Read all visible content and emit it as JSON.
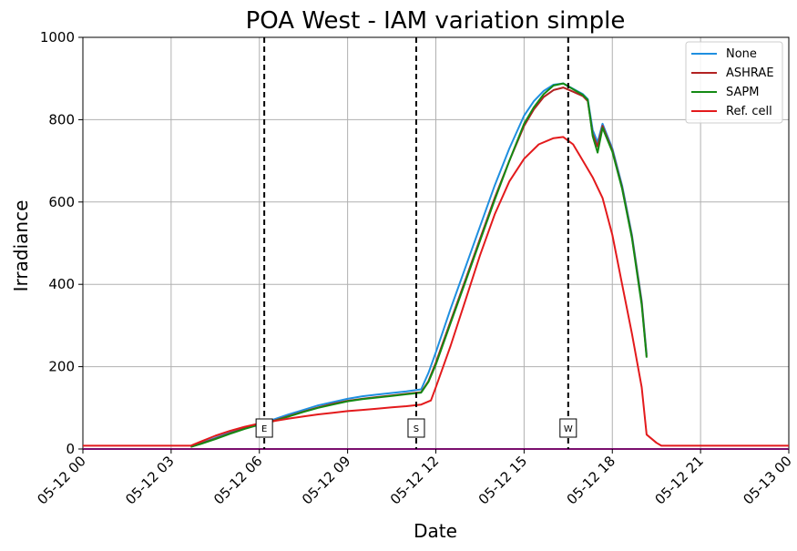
{
  "chart_data": {
    "type": "line",
    "title": "POA West - IAM variation simple",
    "xlabel": "Date",
    "ylabel": "Irradiance",
    "xlim": [
      "05-12 00:00",
      "05-13 00:00"
    ],
    "ylim": [
      0,
      1000
    ],
    "grid": true,
    "legend_position": "top-right",
    "xticks": [
      {
        "t": "05-12 00:00",
        "label": "05-12 00"
      },
      {
        "t": "05-12 03:00",
        "label": "05-12 03"
      },
      {
        "t": "05-12 06:00",
        "label": "05-12 06"
      },
      {
        "t": "05-12 09:00",
        "label": "05-12 09"
      },
      {
        "t": "05-12 12:00",
        "label": "05-12 12"
      },
      {
        "t": "05-12 15:00",
        "label": "05-12 15"
      },
      {
        "t": "05-12 18:00",
        "label": "05-12 18"
      },
      {
        "t": "05-12 21:00",
        "label": "05-12 21"
      },
      {
        "t": "05-13 00:00",
        "label": "05-13 00"
      }
    ],
    "yticks": [
      0,
      200,
      400,
      600,
      800,
      1000
    ],
    "vlines": [
      {
        "t": "05-12 06:10",
        "label": "E"
      },
      {
        "t": "05-12 11:20",
        "label": "S"
      },
      {
        "t": "05-12 16:30",
        "label": "W"
      }
    ],
    "series": [
      {
        "name": "None",
        "color": "#1f8fe0",
        "points": [
          [
            "05-12 03:40",
            5
          ],
          [
            "05-12 04:00",
            14
          ],
          [
            "05-12 04:30",
            27
          ],
          [
            "05-12 05:00",
            40
          ],
          [
            "05-12 05:30",
            52
          ],
          [
            "05-12 06:00",
            62
          ],
          [
            "05-12 06:30",
            72
          ],
          [
            "05-12 07:00",
            84
          ],
          [
            "05-12 07:30",
            95
          ],
          [
            "05-12 08:00",
            106
          ],
          [
            "05-12 08:30",
            114
          ],
          [
            "05-12 09:00",
            122
          ],
          [
            "05-12 09:30",
            128
          ],
          [
            "05-12 10:00",
            132
          ],
          [
            "05-12 10:30",
            136
          ],
          [
            "05-12 11:00",
            140
          ],
          [
            "05-12 11:30",
            145
          ],
          [
            "05-12 11:45",
            185
          ],
          [
            "05-12 12:00",
            235
          ],
          [
            "05-12 12:30",
            340
          ],
          [
            "05-12 13:00",
            440
          ],
          [
            "05-12 13:30",
            540
          ],
          [
            "05-12 14:00",
            640
          ],
          [
            "05-12 14:30",
            730
          ],
          [
            "05-12 15:00",
            810
          ],
          [
            "05-12 15:20",
            845
          ],
          [
            "05-12 15:40",
            870
          ],
          [
            "05-12 16:00",
            885
          ],
          [
            "05-12 16:20",
            888
          ],
          [
            "05-12 16:40",
            875
          ],
          [
            "05-12 17:00",
            862
          ],
          [
            "05-12 17:10",
            850
          ],
          [
            "05-12 17:20",
            775
          ],
          [
            "05-12 17:30",
            745
          ],
          [
            "05-12 17:40",
            790
          ],
          [
            "05-12 18:00",
            730
          ],
          [
            "05-12 18:20",
            640
          ],
          [
            "05-12 18:40",
            520
          ],
          [
            "05-12 19:00",
            360
          ],
          [
            "05-12 19:10",
            230
          ]
        ]
      },
      {
        "name": "ASHRAE",
        "color": "#b22222",
        "points": [
          [
            "05-12 03:40",
            5
          ],
          [
            "05-12 04:00",
            13
          ],
          [
            "05-12 04:30",
            25
          ],
          [
            "05-12 05:00",
            38
          ],
          [
            "05-12 05:30",
            50
          ],
          [
            "05-12 06:00",
            60
          ],
          [
            "05-12 06:30",
            69
          ],
          [
            "05-12 07:00",
            80
          ],
          [
            "05-12 07:30",
            91
          ],
          [
            "05-12 08:00",
            101
          ],
          [
            "05-12 08:30",
            110
          ],
          [
            "05-12 09:00",
            117
          ],
          [
            "05-12 09:30",
            122
          ],
          [
            "05-12 10:00",
            126
          ],
          [
            "05-12 10:30",
            130
          ],
          [
            "05-12 11:00",
            134
          ],
          [
            "05-12 11:30",
            138
          ],
          [
            "05-12 11:45",
            165
          ],
          [
            "05-12 12:00",
            210
          ],
          [
            "05-12 12:30",
            310
          ],
          [
            "05-12 13:00",
            410
          ],
          [
            "05-12 13:30",
            510
          ],
          [
            "05-12 14:00",
            610
          ],
          [
            "05-12 14:30",
            700
          ],
          [
            "05-12 15:00",
            785
          ],
          [
            "05-12 15:20",
            825
          ],
          [
            "05-12 15:40",
            855
          ],
          [
            "05-12 16:00",
            872
          ],
          [
            "05-12 16:20",
            878
          ],
          [
            "05-12 16:40",
            868
          ],
          [
            "05-12 17:00",
            857
          ],
          [
            "05-12 17:10",
            845
          ],
          [
            "05-12 17:20",
            765
          ],
          [
            "05-12 17:30",
            735
          ],
          [
            "05-12 17:40",
            785
          ],
          [
            "05-12 18:00",
            725
          ],
          [
            "05-12 18:20",
            635
          ],
          [
            "05-12 18:40",
            515
          ],
          [
            "05-12 19:00",
            355
          ],
          [
            "05-12 19:10",
            225
          ]
        ]
      },
      {
        "name": "SAPM",
        "color": "#138a13",
        "points": [
          [
            "05-12 03:40",
            5
          ],
          [
            "05-12 04:00",
            12
          ],
          [
            "05-12 04:30",
            24
          ],
          [
            "05-12 05:00",
            37
          ],
          [
            "05-12 05:30",
            49
          ],
          [
            "05-12 06:00",
            59
          ],
          [
            "05-12 06:30",
            68
          ],
          [
            "05-12 07:00",
            79
          ],
          [
            "05-12 07:30",
            90
          ],
          [
            "05-12 08:00",
            100
          ],
          [
            "05-12 08:30",
            108
          ],
          [
            "05-12 09:00",
            116
          ],
          [
            "05-12 09:30",
            121
          ],
          [
            "05-12 10:00",
            125
          ],
          [
            "05-12 10:30",
            129
          ],
          [
            "05-12 11:00",
            133
          ],
          [
            "05-12 11:30",
            137
          ],
          [
            "05-12 11:45",
            163
          ],
          [
            "05-12 12:00",
            205
          ],
          [
            "05-12 12:30",
            305
          ],
          [
            "05-12 13:00",
            405
          ],
          [
            "05-12 13:30",
            505
          ],
          [
            "05-12 14:00",
            605
          ],
          [
            "05-12 14:30",
            700
          ],
          [
            "05-12 15:00",
            790
          ],
          [
            "05-12 15:20",
            830
          ],
          [
            "05-12 15:40",
            862
          ],
          [
            "05-12 16:00",
            883
          ],
          [
            "05-12 16:20",
            888
          ],
          [
            "05-12 16:40",
            874
          ],
          [
            "05-12 17:00",
            860
          ],
          [
            "05-12 17:10",
            848
          ],
          [
            "05-12 17:20",
            760
          ],
          [
            "05-12 17:30",
            720
          ],
          [
            "05-12 17:40",
            780
          ],
          [
            "05-12 18:00",
            722
          ],
          [
            "05-12 18:20",
            632
          ],
          [
            "05-12 18:40",
            512
          ],
          [
            "05-12 19:00",
            350
          ],
          [
            "05-12 19:10",
            222
          ]
        ]
      },
      {
        "name": "Ref. cell",
        "color": "#e31a1c",
        "points": [
          [
            "05-12 00:00",
            8
          ],
          [
            "05-12 03:40",
            8
          ],
          [
            "05-12 04:00",
            18
          ],
          [
            "05-12 04:30",
            32
          ],
          [
            "05-12 05:00",
            44
          ],
          [
            "05-12 05:30",
            54
          ],
          [
            "05-12 06:00",
            62
          ],
          [
            "05-12 06:30",
            68
          ],
          [
            "05-12 07:00",
            74
          ],
          [
            "05-12 07:30",
            79
          ],
          [
            "05-12 08:00",
            84
          ],
          [
            "05-12 08:30",
            88
          ],
          [
            "05-12 09:00",
            92
          ],
          [
            "05-12 09:30",
            95
          ],
          [
            "05-12 10:00",
            98
          ],
          [
            "05-12 10:30",
            101
          ],
          [
            "05-12 11:00",
            104
          ],
          [
            "05-12 11:30",
            108
          ],
          [
            "05-12 11:50",
            118
          ],
          [
            "05-12 12:00",
            150
          ],
          [
            "05-12 12:30",
            250
          ],
          [
            "05-12 13:00",
            360
          ],
          [
            "05-12 13:30",
            470
          ],
          [
            "05-12 14:00",
            570
          ],
          [
            "05-12 14:30",
            650
          ],
          [
            "05-12 15:00",
            705
          ],
          [
            "05-12 15:30",
            740
          ],
          [
            "05-12 16:00",
            755
          ],
          [
            "05-12 16:20",
            758
          ],
          [
            "05-12 16:40",
            740
          ],
          [
            "05-12 17:00",
            700
          ],
          [
            "05-12 17:20",
            660
          ],
          [
            "05-12 17:40",
            610
          ],
          [
            "05-12 18:00",
            520
          ],
          [
            "05-12 18:20",
            400
          ],
          [
            "05-12 18:40",
            280
          ],
          [
            "05-12 19:00",
            150
          ],
          [
            "05-12 19:10",
            35
          ],
          [
            "05-12 19:30",
            15
          ],
          [
            "05-12 19:40",
            8
          ],
          [
            "05-13 00:00",
            8
          ]
        ]
      }
    ]
  }
}
